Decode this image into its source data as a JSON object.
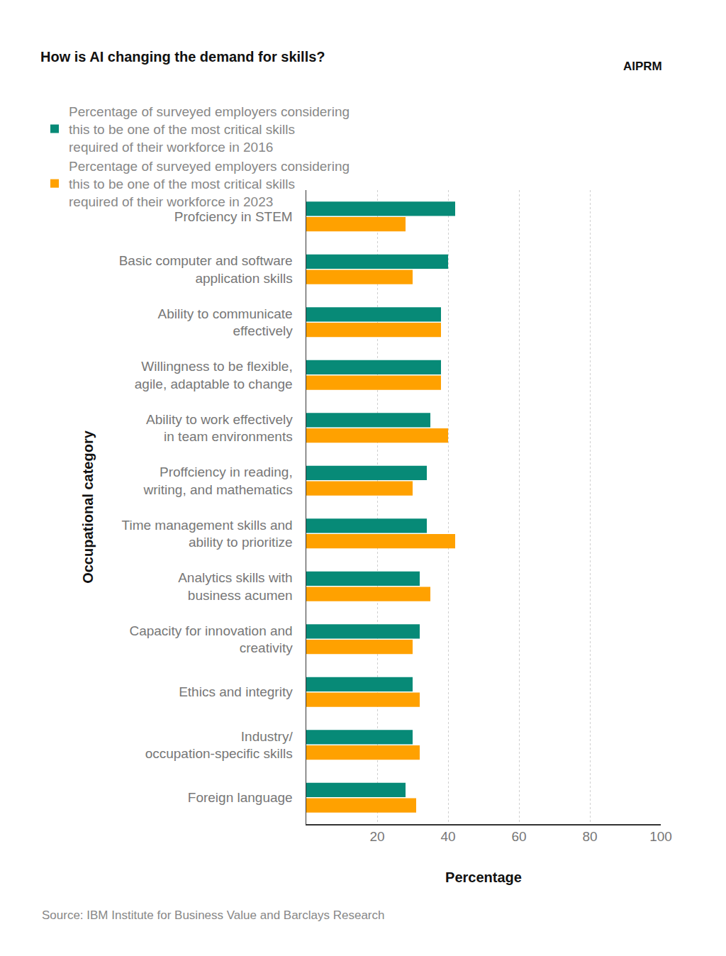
{
  "chart_data": {
    "type": "bar",
    "orientation": "horizontal",
    "title": "How is AI changing the demand for skills?",
    "x_label": "Percentage",
    "y_label": "Occupational category",
    "source": "Source: IBM Institute for Business Value and Barclays Research",
    "logo_text": "AIPRM",
    "categories": [
      "Profciency in STEM",
      "Basic computer and software application skills",
      "Ability to communicate effectively",
      "Willingness to be flexible, agile, adaptable to change",
      "Ability to work effectively in team environments",
      "Proffciency in reading, writing, and mathematics",
      "Time management skills and ability to prioritize",
      "Analytics skills with business acumen",
      "Capacity for innovation and creativity",
      "Ethics and integrity",
      "Industry/ occupation-specific skills",
      "Foreign language"
    ],
    "series": [
      {
        "name": "Percentage of surveyed employers considering this to be one of the most critical skills required of their workforce in 2016",
        "color": "#078a77",
        "values": [
          42,
          40,
          38,
          38,
          35,
          34,
          34,
          32,
          32,
          30,
          30,
          28
        ]
      },
      {
        "name": "Percentage of surveyed employers considering this to be one of the most critical skills required of their workforce in 2023",
        "color": "#ffa100",
        "values": [
          28,
          30,
          38,
          38,
          40,
          30,
          42,
          35,
          30,
          32,
          32,
          31
        ]
      }
    ],
    "xlim": [
      0,
      100
    ],
    "xticks": [
      20,
      40,
      60,
      80,
      100
    ],
    "grid": true,
    "legend": "top"
  }
}
